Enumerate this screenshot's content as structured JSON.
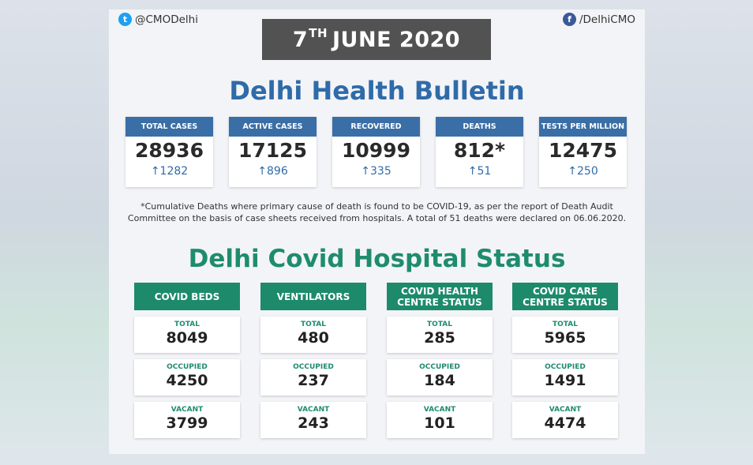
{
  "social": {
    "twitter": "@CMODelhi",
    "facebook": "/DelhiCMO",
    "twitter_icon": "twitter-icon",
    "facebook_icon": "facebook-icon"
  },
  "date": {
    "day": "7",
    "suffix": "TH",
    "rest": "JUNE 2020"
  },
  "bulletin": {
    "title": "Delhi Health Bulletin",
    "stats": [
      {
        "label": "TOTAL CASES",
        "value": "28936",
        "increase": "1282"
      },
      {
        "label": "ACTIVE CASES",
        "value": "17125",
        "increase": "896"
      },
      {
        "label": "RECOVERED",
        "value": "10999",
        "increase": "335"
      },
      {
        "label": "DEATHS",
        "value": "812*",
        "increase": "51"
      },
      {
        "label": "TESTS PER MILLION",
        "value": "12475",
        "increase": "250"
      }
    ],
    "note_line1": "*Cumulative Deaths where primary cause of death is found to be COVID-19, as per  the report of Death Audit",
    "note_line2": "Committee on the basis of case sheets received from hospitals. A total of 51 deaths were declared on 06.06.2020."
  },
  "hospital": {
    "title": "Delhi Covid Hospital Status",
    "columns": [
      {
        "header_line1": "COVID BEDS",
        "header_line2": "",
        "total_label": "TOTAL",
        "total": "8049",
        "occupied_label": "OCCUPIED",
        "occupied": "4250",
        "vacant_label": "VACANT",
        "vacant": "3799"
      },
      {
        "header_line1": "VENTILATORS",
        "header_line2": "",
        "total_label": "TOTAL",
        "total": "480",
        "occupied_label": "OCCUPIED",
        "occupied": "237",
        "vacant_label": "VACANT",
        "vacant": "243"
      },
      {
        "header_line1": "COVID HEALTH",
        "header_line2": "CENTRE STATUS",
        "total_label": "TOTAL",
        "total": "285",
        "occupied_label": "OCCUPIED",
        "occupied": "184",
        "vacant_label": "VACANT",
        "vacant": "101"
      },
      {
        "header_line1": "COVID CARE",
        "header_line2": "CENTRE STATUS",
        "total_label": "TOTAL",
        "total": "5965",
        "occupied_label": "OCCUPIED",
        "occupied": "1491",
        "vacant_label": "VACANT",
        "vacant": "4474"
      }
    ]
  },
  "colors": {
    "blue": "#3a6ea6",
    "green": "#1d8b6b",
    "banner": "#525252"
  }
}
